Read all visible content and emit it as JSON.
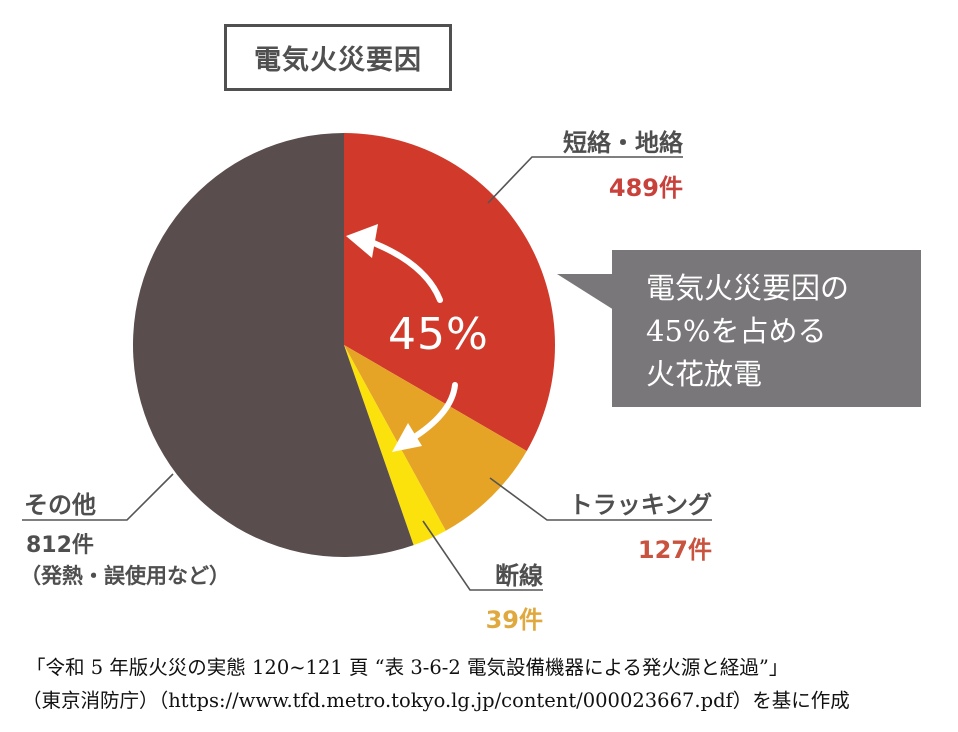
{
  "title": "電気火災要因",
  "callout": {
    "lines": [
      "電気火災要因の",
      "45%を占める",
      "火花放電"
    ],
    "color": "#7a777a"
  },
  "center_annotation": "45%",
  "segments": [
    {
      "name": "短絡・地絡",
      "count_label": "489件",
      "value": 489,
      "color": "#d13a2b",
      "count_color": "#c8413a"
    },
    {
      "name": "トラッキング",
      "count_label": "127件",
      "value": 127,
      "color": "#e6a427",
      "count_color": "#c8533f"
    },
    {
      "name": "断線",
      "count_label": "39件",
      "value": 39,
      "color": "#fbe20c",
      "count_color": "#e0a93f"
    },
    {
      "name": "その他",
      "count_label": "812件",
      "sub_label": "（発熱・誤使用など）",
      "value": 812,
      "color": "#594d4d",
      "count_color": "#4f4f4f"
    }
  ],
  "source": {
    "line1": "「令和 5 年版火災の実態  120~121 頁  “表 3-6-2  電気設備機器による発火源と経過”」",
    "line2": "（東京消防庁）（https://www.tfd.metro.tokyo.lg.jp/content/000023667.pdf）を基に作成"
  },
  "chart_data": {
    "type": "pie",
    "title": "電気火災要因",
    "categories": [
      "短絡・地絡",
      "トラッキング",
      "断線",
      "その他"
    ],
    "values": [
      489,
      127,
      39,
      812
    ],
    "unit": "件",
    "colors": [
      "#d13a2b",
      "#e6a427",
      "#fbe20c",
      "#594d4d"
    ],
    "start_angle": "12 o'clock, clockwise",
    "annotations": [
      {
        "text": "45%",
        "spans": [
          "短絡・地絡",
          "トラッキング",
          "断線"
        ]
      },
      {
        "text": "電気火災要因の45%を占める火花放電",
        "type": "callout"
      },
      {
        "text": "（発熱・誤使用など）",
        "target": "その他"
      }
    ],
    "legend": "leader-line labels"
  }
}
